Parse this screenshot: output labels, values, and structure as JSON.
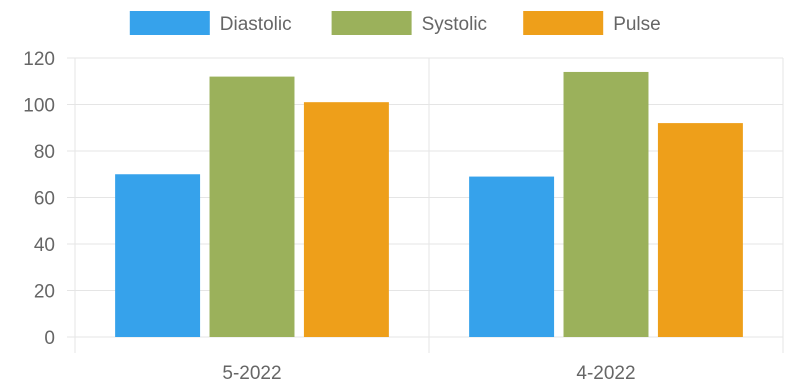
{
  "chart_data": {
    "type": "bar",
    "categories": [
      "5-2022",
      "4-2022"
    ],
    "series": [
      {
        "name": "Diastolic",
        "values": [
          70,
          69
        ],
        "color": "#36A2EB"
      },
      {
        "name": "Systolic",
        "values": [
          112,
          114
        ],
        "color": "#9BB15B"
      },
      {
        "name": "Pulse",
        "values": [
          101,
          92
        ],
        "color": "#EE9F1A"
      }
    ],
    "ylim": [
      0,
      120
    ],
    "yticks": [
      0,
      20,
      40,
      60,
      80,
      100,
      120
    ],
    "grid": true,
    "legend": "top-center"
  }
}
